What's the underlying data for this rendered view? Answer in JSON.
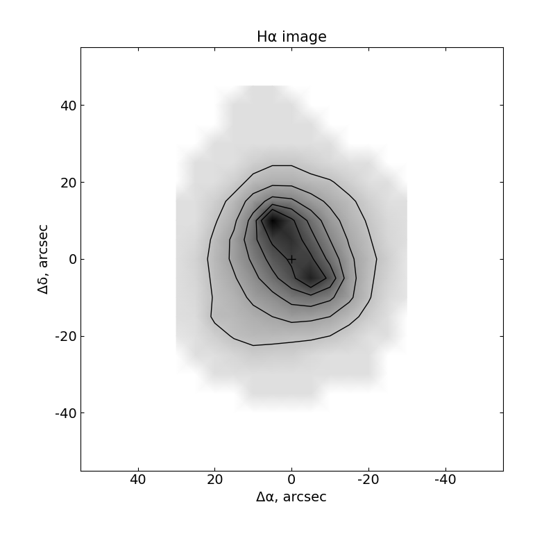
{
  "chart_data": {
    "type": "heatmap_contour",
    "title": "Hα image",
    "x_label": "Δα, arcsec",
    "y_label": "Δδ, arcsec",
    "xlim": [
      55,
      -55
    ],
    "ylim": [
      -55,
      55
    ],
    "xticks": [
      40,
      20,
      0,
      -20,
      -40
    ],
    "yticks": [
      -40,
      -20,
      0,
      20,
      40
    ],
    "x": [
      30,
      25,
      20,
      15,
      10,
      5,
      0,
      -5,
      -10,
      -15,
      -20,
      -25,
      -30
    ],
    "y": [
      45,
      40,
      35,
      30,
      25,
      20,
      15,
      10,
      5,
      0,
      -5,
      -10,
      -15,
      -20,
      -25,
      -30,
      -35,
      -40
    ],
    "cells": [
      [
        0,
        0,
        0,
        0,
        1,
        1,
        0,
        0,
        0,
        0,
        0,
        0,
        0
      ],
      [
        0,
        0,
        0,
        1,
        1,
        1,
        1,
        0,
        0,
        0,
        0,
        0,
        0
      ],
      [
        0,
        0,
        0,
        1,
        1,
        1,
        1,
        1,
        0,
        0,
        0,
        0,
        0
      ],
      [
        0,
        0,
        1,
        1,
        1,
        1,
        1,
        1,
        1,
        0,
        0,
        0,
        0
      ],
      [
        0,
        1,
        1,
        1,
        1.5,
        1.8,
        1.8,
        1.5,
        1.2,
        1,
        1,
        0,
        0
      ],
      [
        0,
        1,
        1,
        1.5,
        2.2,
        2.5,
        2.5,
        2.2,
        2,
        1.5,
        1,
        1,
        0
      ],
      [
        1,
        1,
        1.5,
        2.2,
        3.2,
        4.2,
        4,
        3.2,
        2.6,
        2.1,
        1.5,
        1,
        1
      ],
      [
        1,
        1,
        1.8,
        2.6,
        4.2,
        8,
        6,
        4.5,
        3.2,
        2.4,
        1.8,
        1.2,
        1
      ],
      [
        1,
        1.2,
        2.1,
        3,
        4.5,
        6,
        6.5,
        5.2,
        3.8,
        2.7,
        2,
        1.3,
        1
      ],
      [
        1,
        1.4,
        2.2,
        3,
        4,
        5.2,
        6,
        6,
        4.5,
        3,
        2.2,
        1.5,
        0.8
      ],
      [
        1,
        1.3,
        2.1,
        2.7,
        3.5,
        4.5,
        5.5,
        7,
        5.5,
        3.2,
        2.1,
        1.4,
        0.8
      ],
      [
        1,
        1.2,
        2,
        2.4,
        3,
        3.5,
        4.2,
        4.5,
        4,
        3,
        2,
        1.2,
        0.8
      ],
      [
        1,
        1.1,
        2.1,
        2.2,
        2.5,
        2.8,
        3.1,
        3,
        2.8,
        2.2,
        1.6,
        1,
        0
      ],
      [
        0.8,
        1,
        1.5,
        2,
        2.2,
        2.2,
        2.1,
        2.1,
        1.9,
        1.5,
        1,
        1,
        0
      ],
      [
        0,
        1,
        1,
        1.3,
        1.6,
        1.5,
        1.5,
        1.2,
        1,
        1,
        1,
        0,
        0
      ],
      [
        0,
        0,
        1,
        1,
        1,
        1,
        1,
        1,
        1,
        1,
        1,
        0,
        0
      ],
      [
        0,
        0,
        0,
        0,
        1,
        1,
        1,
        1,
        0,
        0,
        0,
        0,
        0
      ],
      [
        0,
        0,
        0,
        0,
        0,
        0,
        0,
        0,
        0,
        0,
        0,
        0,
        0
      ]
    ],
    "zlim": [
      0,
      8
    ],
    "contour_levels": [
      1.9,
      2.8,
      3.8,
      4.8,
      5.8
    ],
    "center": [
      0,
      0
    ],
    "marker": "+",
    "color": "#000000"
  }
}
